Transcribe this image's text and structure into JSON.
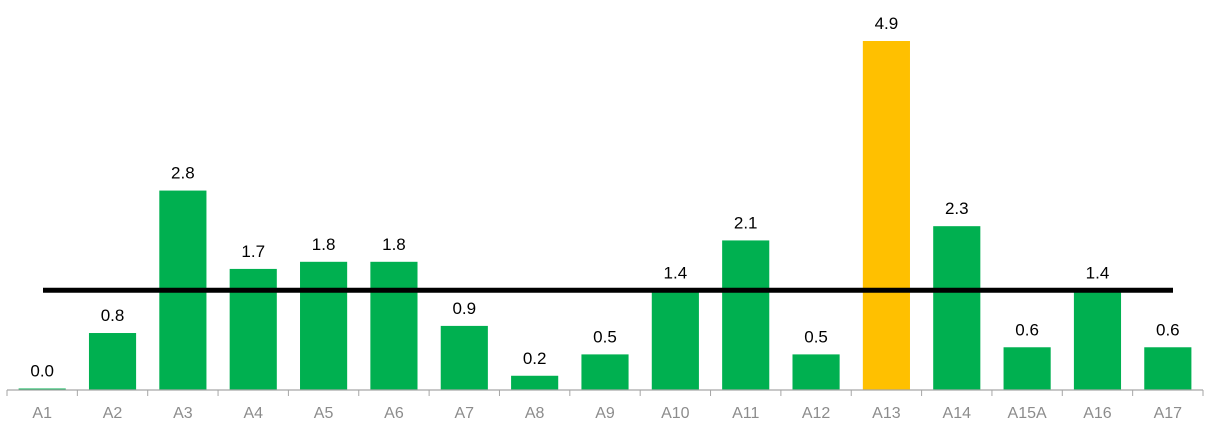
{
  "chart_data": {
    "type": "bar",
    "categories": [
      "A1",
      "A2",
      "A3",
      "A4",
      "A5",
      "A6",
      "A7",
      "A8",
      "A9",
      "A10",
      "A11",
      "A12",
      "A13",
      "A14",
      "A15A",
      "A16",
      "A17"
    ],
    "values": [
      0.0,
      0.8,
      2.8,
      1.7,
      1.8,
      1.8,
      0.9,
      0.2,
      0.5,
      1.4,
      2.1,
      0.5,
      4.9,
      2.3,
      0.6,
      1.4,
      0.6
    ],
    "value_labels": [
      "0.0",
      "0.8",
      "2.8",
      "1.7",
      "1.8",
      "1.8",
      "0.9",
      "0.2",
      "0.5",
      "1.4",
      "2.1",
      "0.5",
      "4.9",
      "2.3",
      "0.6",
      "1.4",
      "0.6"
    ],
    "highlight_index": 12,
    "reference_line": 1.4,
    "ylim": [
      0,
      4.9
    ],
    "grid": false,
    "colors": {
      "bar": "#00b050",
      "highlight": "#ffc000",
      "reference_line": "#000000",
      "axis": "#a6a6a6",
      "tick_text": "#8c8c8c",
      "value_text": "#000000"
    }
  }
}
